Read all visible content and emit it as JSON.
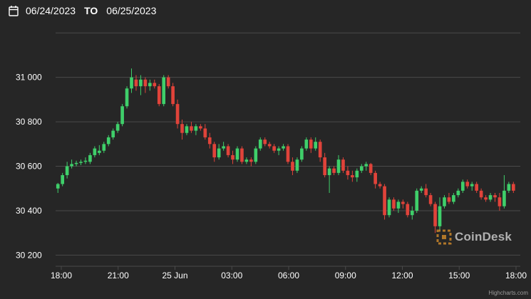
{
  "date_range": {
    "start": "06/24/2023",
    "separator": "TO",
    "end": "06/25/2023"
  },
  "icons": {
    "calendar": "calendar-icon",
    "watermark": "coindesk-logo-icon"
  },
  "watermark": "CoinDesk",
  "credit": "Highcharts.com",
  "colors": {
    "background": "#262626",
    "up": "#3fcf6a",
    "down": "#e0433a",
    "grid": "#4a4a4a",
    "text": "#ffffff"
  },
  "chart_data": {
    "type": "candlestick",
    "title": "",
    "xlabel": "",
    "ylabel": "",
    "ylim": [
      30150,
      31220
    ],
    "yticks": [
      30200,
      30400,
      30600,
      30800,
      31000
    ],
    "ytick_labels": [
      "30 200",
      "30 400",
      "30 600",
      "30 800",
      "31 000"
    ],
    "xticks": [
      "18:00",
      "21:00",
      "25 Jun",
      "03:00",
      "06:00",
      "09:00",
      "12:00",
      "15:00",
      "18:00"
    ],
    "x_start": "06/24/2023 18:00",
    "x_end": "06/25/2023 18:00",
    "interval_minutes": 15,
    "grid": true,
    "series": [
      {
        "ohlc": [
          [
            30500,
            30525,
            30480,
            30520
          ],
          [
            30520,
            30570,
            30510,
            30560
          ],
          [
            30560,
            30620,
            30545,
            30600
          ],
          [
            30600,
            30630,
            30590,
            30610
          ],
          [
            30610,
            30625,
            30600,
            30615
          ],
          [
            30615,
            30630,
            30605,
            30620
          ],
          [
            30620,
            30640,
            30610,
            30625
          ],
          [
            30620,
            30660,
            30610,
            30650
          ],
          [
            30650,
            30690,
            30640,
            30680
          ],
          [
            30660,
            30695,
            30650,
            30670
          ],
          [
            30670,
            30710,
            30660,
            30700
          ],
          [
            30700,
            30740,
            30690,
            30730
          ],
          [
            30730,
            30770,
            30720,
            30760
          ],
          [
            30760,
            30800,
            30750,
            30790
          ],
          [
            30790,
            30880,
            30780,
            30870
          ],
          [
            30870,
            30960,
            30860,
            30950
          ],
          [
            30950,
            31040,
            30930,
            31000
          ],
          [
            30990,
            31010,
            30940,
            30960
          ],
          [
            30960,
            31010,
            30920,
            30990
          ],
          [
            30990,
            31000,
            30930,
            30960
          ],
          [
            30960,
            30990,
            30940,
            30975
          ],
          [
            30975,
            30990,
            30950,
            30960
          ],
          [
            30960,
            30970,
            30870,
            30880
          ],
          [
            30880,
            31010,
            30870,
            31000
          ],
          [
            31000,
            31010,
            30950,
            30960
          ],
          [
            30960,
            30975,
            30870,
            30880
          ],
          [
            30880,
            30900,
            30770,
            30790
          ],
          [
            30790,
            30810,
            30720,
            30750
          ],
          [
            30750,
            30790,
            30740,
            30780
          ],
          [
            30780,
            30800,
            30750,
            30760
          ],
          [
            30760,
            30790,
            30740,
            30780
          ],
          [
            30780,
            30790,
            30760,
            30770
          ],
          [
            30770,
            30790,
            30720,
            30730
          ],
          [
            30730,
            30750,
            30680,
            30700
          ],
          [
            30700,
            30710,
            30620,
            30640
          ],
          [
            30640,
            30700,
            30630,
            30680
          ],
          [
            30680,
            30710,
            30670,
            30690
          ],
          [
            30690,
            30700,
            30640,
            30650
          ],
          [
            30650,
            30670,
            30610,
            30630
          ],
          [
            30630,
            30690,
            30620,
            30680
          ],
          [
            30680,
            30690,
            30610,
            30620
          ],
          [
            30620,
            30640,
            30610,
            30630
          ],
          [
            30630,
            30640,
            30600,
            30620
          ],
          [
            30620,
            30690,
            30610,
            30680
          ],
          [
            30680,
            30730,
            30670,
            30720
          ],
          [
            30720,
            30730,
            30690,
            30700
          ],
          [
            30700,
            30710,
            30680,
            30690
          ],
          [
            30690,
            30700,
            30660,
            30670
          ],
          [
            30670,
            30690,
            30650,
            30680
          ],
          [
            30680,
            30700,
            30670,
            30690
          ],
          [
            30690,
            30700,
            30610,
            30620
          ],
          [
            30620,
            30640,
            30560,
            30580
          ],
          [
            30580,
            30640,
            30570,
            30630
          ],
          [
            30630,
            30690,
            30620,
            30680
          ],
          [
            30680,
            30730,
            30670,
            30720
          ],
          [
            30720,
            30730,
            30660,
            30680
          ],
          [
            30680,
            30730,
            30670,
            30710
          ],
          [
            30710,
            30720,
            30620,
            30640
          ],
          [
            30640,
            30660,
            30550,
            30560
          ],
          [
            30560,
            30600,
            30480,
            30590
          ],
          [
            30590,
            30600,
            30560,
            30570
          ],
          [
            30570,
            30650,
            30560,
            30630
          ],
          [
            30630,
            30640,
            30570,
            30580
          ],
          [
            30580,
            30600,
            30540,
            30560
          ],
          [
            30560,
            30580,
            30530,
            30550
          ],
          [
            30550,
            30590,
            30530,
            30580
          ],
          [
            30580,
            30610,
            30570,
            30600
          ],
          [
            30600,
            30620,
            30580,
            30610
          ],
          [
            30610,
            30615,
            30560,
            30570
          ],
          [
            30570,
            30580,
            30500,
            30520
          ],
          [
            30520,
            30530,
            30500,
            30510
          ],
          [
            30510,
            30520,
            30360,
            30380
          ],
          [
            30380,
            30460,
            30370,
            30450
          ],
          [
            30450,
            30460,
            30400,
            30410
          ],
          [
            30410,
            30450,
            30390,
            30440
          ],
          [
            30440,
            30450,
            30410,
            30430
          ],
          [
            30430,
            30440,
            30370,
            30380
          ],
          [
            30380,
            30420,
            30360,
            30400
          ],
          [
            30400,
            30500,
            30390,
            30490
          ],
          [
            30490,
            30510,
            30480,
            30500
          ],
          [
            30500,
            30520,
            30460,
            30470
          ],
          [
            30470,
            30480,
            30420,
            30430
          ],
          [
            30430,
            30440,
            30300,
            30330
          ],
          [
            30330,
            30460,
            30310,
            30420
          ],
          [
            30420,
            30470,
            30410,
            30460
          ],
          [
            30460,
            30480,
            30430,
            30440
          ],
          [
            30440,
            30480,
            30430,
            30470
          ],
          [
            30470,
            30500,
            30460,
            30490
          ],
          [
            30490,
            30540,
            30480,
            30530
          ],
          [
            30530,
            30540,
            30500,
            30510
          ],
          [
            30510,
            30530,
            30490,
            30520
          ],
          [
            30520,
            30530,
            30480,
            30490
          ],
          [
            30490,
            30500,
            30450,
            30460
          ],
          [
            30460,
            30470,
            30440,
            30450
          ],
          [
            30450,
            30480,
            30440,
            30470
          ],
          [
            30470,
            30480,
            30440,
            30460
          ],
          [
            30460,
            30480,
            30400,
            30420
          ],
          [
            30420,
            30560,
            30410,
            30490
          ],
          [
            30490,
            30530,
            30480,
            30520
          ],
          [
            30520,
            30530,
            30480,
            30490
          ]
        ]
      }
    ]
  }
}
